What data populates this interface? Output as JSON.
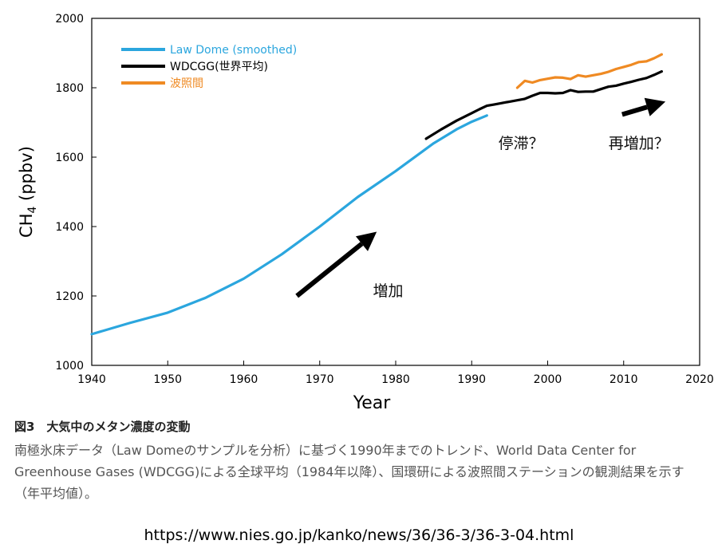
{
  "chart_data": {
    "type": "line",
    "xlabel": "Year",
    "ylabel": "CH",
    "ylabel_sub": "4",
    "ylabel_unit": " (ppbv)",
    "xlim": [
      1940,
      2020
    ],
    "ylim": [
      1000,
      2000
    ],
    "x_ticks": [
      1940,
      1950,
      1960,
      1970,
      1980,
      1990,
      2000,
      2010,
      2020
    ],
    "y_ticks": [
      1000,
      1200,
      1400,
      1600,
      1800,
      2000
    ],
    "grid": false,
    "legend_position": "top-left",
    "series": [
      {
        "name": "Law Dome (smoothed)",
        "color": "#2ba6de",
        "x": [
          1940,
          1945,
          1950,
          1955,
          1960,
          1965,
          1970,
          1975,
          1980,
          1985,
          1988,
          1990,
          1992
        ],
        "y": [
          1090,
          1122,
          1152,
          1195,
          1250,
          1320,
          1400,
          1485,
          1560,
          1640,
          1680,
          1702,
          1720
        ]
      },
      {
        "name": "WDCGG(世界平均)",
        "color": "#000000",
        "x": [
          1984,
          1986,
          1988,
          1990,
          1991,
          1992,
          1993,
          1995,
          1997,
          1998,
          1999,
          2000,
          2001,
          2002,
          2003,
          2004,
          2005,
          2006,
          2007,
          2008,
          2009,
          2010,
          2011,
          2012,
          2013,
          2014,
          2015
        ],
        "y": [
          1653,
          1680,
          1705,
          1727,
          1738,
          1748,
          1752,
          1760,
          1768,
          1777,
          1785,
          1785,
          1784,
          1785,
          1793,
          1788,
          1789,
          1789,
          1796,
          1803,
          1806,
          1812,
          1817,
          1823,
          1828,
          1837,
          1847
        ]
      },
      {
        "name": "波照間",
        "color": "#ef8a23",
        "x": [
          1996,
          1997,
          1998,
          1999,
          2000,
          2001,
          2002,
          2003,
          2004,
          2005,
          2006,
          2007,
          2008,
          2009,
          2010,
          2011,
          2012,
          2013,
          2014,
          2015
        ],
        "y": [
          1800,
          1820,
          1815,
          1822,
          1826,
          1830,
          1829,
          1825,
          1836,
          1832,
          1836,
          1840,
          1846,
          1854,
          1860,
          1866,
          1874,
          1876,
          1885,
          1896
        ]
      }
    ],
    "annotations": [
      {
        "text": "増加",
        "x": 1979,
        "y": 1200
      },
      {
        "text": "停滞？",
        "x": 1996.5,
        "y": 1625
      },
      {
        "text": "再増加？",
        "x": 2012,
        "y": 1625
      }
    ],
    "arrows": [
      {
        "from": [
          1967,
          1200
        ],
        "to": [
          1977.5,
          1385
        ]
      },
      {
        "from": [
          2009.8,
          1723
        ],
        "to": [
          2015.5,
          1760
        ]
      }
    ]
  },
  "caption": {
    "title": "図3　大気中のメタン濃度の変動",
    "body": "南極氷床データ（Law Domeのサンプルを分析）に基づく1990年までのトレンド、World Data Center for Greenhouse Gases (WDCGG)による全球平均（1984年以降）、国環研による波照間ステーションの観測結果を示す（年平均値）。"
  },
  "source_url": "https://www.nies.go.jp/kanko/news/36/36-3/36-3-04.html"
}
